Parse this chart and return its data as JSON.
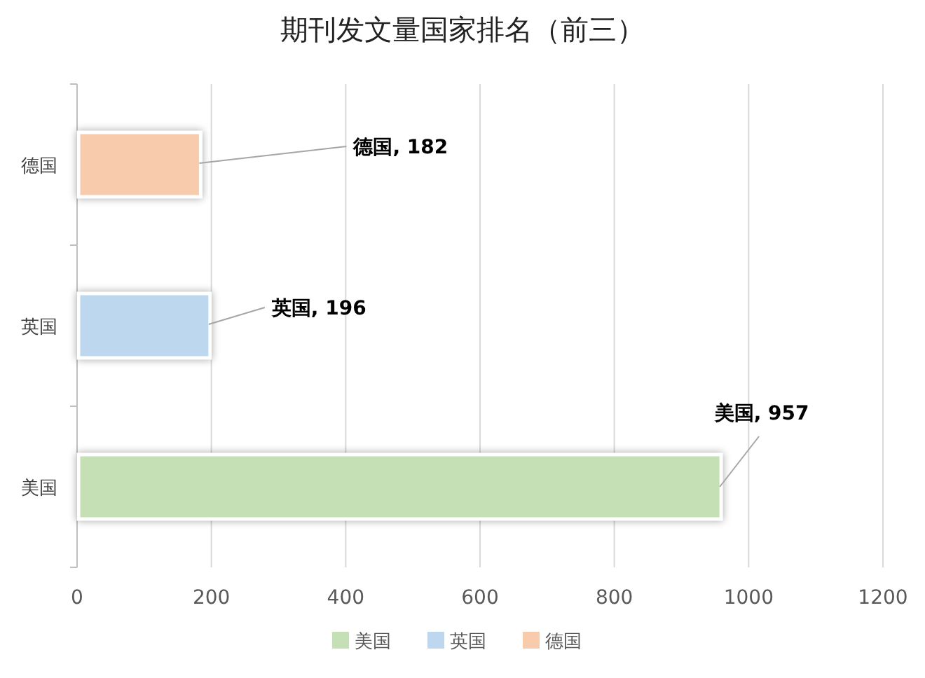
{
  "chart_data": {
    "type": "bar",
    "orientation": "horizontal",
    "stacked": true,
    "title": "期刊发文量国家排名（前三）",
    "categories": [
      "德国",
      "英国",
      "美国"
    ],
    "series": [
      {
        "name": "美国",
        "color": "#c5e0b4",
        "values": [
          null,
          null,
          957
        ],
        "value_labels": [
          null,
          null,
          "美国, 957"
        ]
      },
      {
        "name": "英国",
        "color": "#bdd7ee",
        "values": [
          null,
          196,
          null
        ],
        "value_labels": [
          null,
          "英国, 196",
          null
        ]
      },
      {
        "name": "德国",
        "color": "#f8cbad",
        "values": [
          182,
          null,
          null
        ],
        "value_labels": [
          "德国, 182",
          null,
          null
        ]
      }
    ],
    "xlim": [
      0,
      1200
    ],
    "xticks": [
      0,
      200,
      400,
      600,
      800,
      1000,
      1200
    ],
    "grid": "x",
    "legend": "bottom"
  }
}
